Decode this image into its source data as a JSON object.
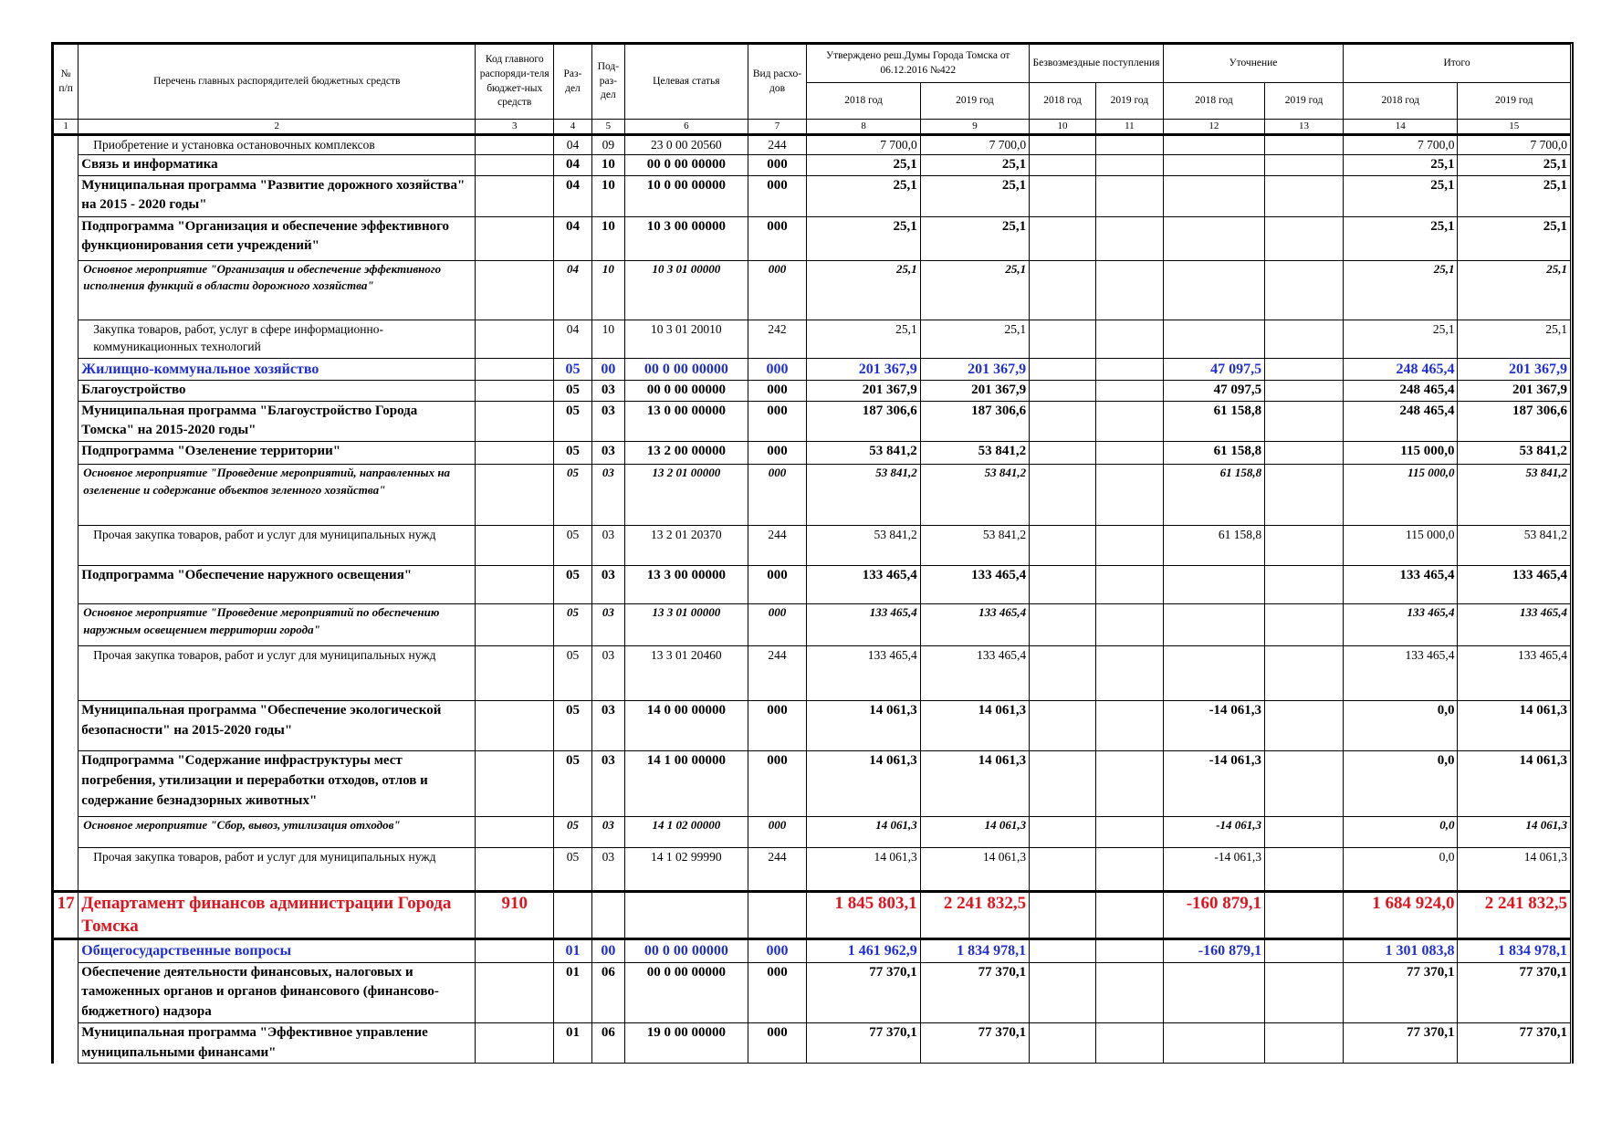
{
  "header": {
    "col1": "№ п/п",
    "col2": "Перечень главных распорядителей бюджетных средств",
    "col3": "Код главного распоряди-теля бюджет-ных средств",
    "col4": "Раз-дел",
    "col5": "Под-раз-дел",
    "col6": "Целевая статья",
    "col7": "Вид расхо-дов",
    "group_approved": "Утверждено реш.Думы Города Томска от 06.12.2016 №422",
    "group_gratis": "Безвозмездные поступления",
    "group_clarification": "Уточнение",
    "group_total": "Итого",
    "y2018": "2018 год",
    "y2019": "2019 год",
    "numbers": [
      "1",
      "2",
      "3",
      "4",
      "5",
      "6",
      "7",
      "8",
      "9",
      "10",
      "11",
      "12",
      "13",
      "14",
      "15"
    ]
  },
  "rows": [
    {
      "style": "pl",
      "name": "Приобретение и установка остановочных комплексов",
      "razdel": "04",
      "podrazdel": "09",
      "cs": "23 0 00 20560",
      "vr": "244",
      "a2018": "7 700,0",
      "a2019": "7 700,0",
      "u2018": "",
      "t2018": "7 700,0",
      "t2019": "7 700,0"
    },
    {
      "style": "b",
      "name": "Связь и информатика",
      "razdel": "04",
      "podrazdel": "10",
      "cs": "00 0 00 00000",
      "vr": "000",
      "a2018": "25,1",
      "a2019": "25,1",
      "u2018": "",
      "t2018": "25,1",
      "t2019": "25,1"
    },
    {
      "style": "b",
      "name": "Муниципальная программа \"Развитие дорожного хозяйства\" на 2015 - 2020 годы\"",
      "razdel": "04",
      "podrazdel": "10",
      "cs": "10 0 00 00000",
      "vr": "000",
      "a2018": "25,1",
      "a2019": "25,1",
      "u2018": "",
      "t2018": "25,1",
      "t2019": "25,1"
    },
    {
      "style": "b",
      "name": "Подпрограмма \"Организация и обеспечение эффективного функционирования сети учреждений\"",
      "razdel": "04",
      "podrazdel": "10",
      "cs": "10 3 00 00000",
      "vr": "000",
      "a2018": "25,1",
      "a2019": "25,1",
      "u2018": "",
      "t2018": "25,1",
      "t2019": "25,1"
    },
    {
      "style": "bi",
      "name": "Основное мероприятие \"Организация и обеспечение эффективного исполнения функций в области дорожного хозяйства\"",
      "razdel": "04",
      "podrazdel": "10",
      "cs": "10 3 01 00000",
      "vr": "000",
      "a2018": "25,1",
      "a2019": "25,1",
      "u2018": "",
      "t2018": "25,1",
      "t2019": "25,1"
    },
    {
      "style": "pl",
      "name": "Закупка товаров, работ, услуг в сфере информационно-коммуникационных технологий",
      "razdel": "04",
      "podrazdel": "10",
      "cs": "10 3 01 20010",
      "vr": "242",
      "a2018": "25,1",
      "a2019": "25,1",
      "u2018": "",
      "t2018": "25,1",
      "t2019": "25,1"
    },
    {
      "style": "blue",
      "name": "Жилищно-коммунальное хозяйство",
      "razdel": "05",
      "podrazdel": "00",
      "cs": "00 0 00 00000",
      "vr": "000",
      "a2018": "201 367,9",
      "a2019": "201 367,9",
      "u2018": "47 097,5",
      "t2018": "248 465,4",
      "t2019": "201 367,9"
    },
    {
      "style": "b",
      "name": "Благоустройство",
      "razdel": "05",
      "podrazdel": "03",
      "cs": "00 0 00 00000",
      "vr": "000",
      "a2018": "201 367,9",
      "a2019": "201 367,9",
      "u2018": "47 097,5",
      "t2018": "248 465,4",
      "t2019": "201 367,9"
    },
    {
      "style": "b",
      "name": "Муниципальная программа \"Благоустройство Города Томска\" на 2015-2020 годы\"",
      "razdel": "05",
      "podrazdel": "03",
      "cs": "13 0 00 00000",
      "vr": "000",
      "a2018": "187 306,6",
      "a2019": "187 306,6",
      "u2018": "61 158,8",
      "t2018": "248 465,4",
      "t2019": "187 306,6"
    },
    {
      "style": "b",
      "name": "Подпрограмма \"Озеленение территории\"",
      "razdel": "05",
      "podrazdel": "03",
      "cs": "13 2 00 00000",
      "vr": "000",
      "a2018": "53 841,2",
      "a2019": "53 841,2",
      "u2018": "61 158,8",
      "t2018": "115 000,0",
      "t2019": "53 841,2"
    },
    {
      "style": "bi",
      "name": "Основное мероприятие \"Проведение мероприятий, направленных на озеленение и содержание объектов зеленного хозяйства\"",
      "razdel": "05",
      "podrazdel": "03",
      "cs": "13 2 01 00000",
      "vr": "000",
      "a2018": "53 841,2",
      "a2019": "53 841,2",
      "u2018": "61 158,8",
      "t2018": "115 000,0",
      "t2019": "53 841,2"
    },
    {
      "style": "pl",
      "name": "Прочая закупка товаров, работ и услуг для муниципальных нужд",
      "razdel": "05",
      "podrazdel": "03",
      "cs": "13 2 01 20370",
      "vr": "244",
      "a2018": "53 841,2",
      "a2019": "53 841,2",
      "u2018": "61 158,8",
      "t2018": "115 000,0",
      "t2019": "53 841,2"
    },
    {
      "style": "b",
      "name": "Подпрограмма \"Обеспечение наружного освещения\"",
      "razdel": "05",
      "podrazdel": "03",
      "cs": "13 3 00 00000",
      "vr": "000",
      "a2018": "133 465,4",
      "a2019": "133 465,4",
      "u2018": "",
      "t2018": "133 465,4",
      "t2019": "133 465,4"
    },
    {
      "style": "bi",
      "name": "Основное мероприятие \"Проведение мероприятий по обеспечению наружным освещением территории города\"",
      "razdel": "05",
      "podrazdel": "03",
      "cs": "13 3 01 00000",
      "vr": "000",
      "a2018": "133 465,4",
      "a2019": "133 465,4",
      "u2018": "",
      "t2018": "133 465,4",
      "t2019": "133 465,4"
    },
    {
      "style": "pl",
      "name": "Прочая закупка товаров, работ и услуг для муниципальных нужд",
      "razdel": "05",
      "podrazdel": "03",
      "cs": "13 3 01 20460",
      "vr": "244",
      "a2018": "133 465,4",
      "a2019": "133 465,4",
      "u2018": "",
      "t2018": "133 465,4",
      "t2019": "133 465,4"
    },
    {
      "style": "b",
      "name": "Муниципальная программа \"Обеспечение экологической безопасности\" на 2015-2020 годы\"",
      "razdel": "05",
      "podrazdel": "03",
      "cs": "14 0 00 00000",
      "vr": "000",
      "a2018": "14 061,3",
      "a2019": "14 061,3",
      "u2018": "-14 061,3",
      "t2018": "0,0",
      "t2019": "14 061,3"
    },
    {
      "style": "b",
      "name": "Подпрограмма \"Содержание инфраструктуры мест погребения, утилизации и переработки отходов, отлов и содержание безнадзорных животных\"",
      "razdel": "05",
      "podrazdel": "03",
      "cs": "14 1 00 00000",
      "vr": "000",
      "a2018": "14 061,3",
      "a2019": "14 061,3",
      "u2018": "-14 061,3",
      "t2018": "0,0",
      "t2019": "14 061,3"
    },
    {
      "style": "bi",
      "name": "Основное мероприятие \"Сбор, вывоз, утилизация отходов\"",
      "razdel": "05",
      "podrazdel": "03",
      "cs": "14 1 02 00000",
      "vr": "000",
      "a2018": "14 061,3",
      "a2019": "14 061,3",
      "u2018": "-14 061,3",
      "t2018": "0,0",
      "t2019": "14 061,3"
    },
    {
      "style": "pl",
      "name": "Прочая закупка товаров, работ и услуг для муниципальных нужд",
      "razdel": "05",
      "podrazdel": "03",
      "cs": "14 1 02 99990",
      "vr": "244",
      "a2018": "14 061,3",
      "a2019": "14 061,3",
      "u2018": "-14 061,3",
      "t2018": "0,0",
      "t2019": "14 061,3"
    },
    {
      "style": "red",
      "num": "17",
      "name": "Департамент финансов администрации Города Томска",
      "code": "910",
      "razdel": "",
      "podrazdel": "",
      "cs": "",
      "vr": "",
      "a2018": "1 845 803,1",
      "a2019": "2 241 832,5",
      "u2018": "-160 879,1",
      "t2018": "1 684 924,0",
      "t2019": "2 241 832,5"
    },
    {
      "style": "blue",
      "name": "Общегосударственные вопросы",
      "razdel": "01",
      "podrazdel": "00",
      "cs": "00 0 00 00000",
      "vr": "000",
      "a2018": "1 461 962,9",
      "a2019": "1 834 978,1",
      "u2018": "-160 879,1",
      "t2018": "1 301 083,8",
      "t2019": "1 834 978,1"
    },
    {
      "style": "b",
      "name": "Обеспечение деятельности финансовых, налоговых и таможенных органов и органов финансового (финансово-бюджетного) надзора",
      "razdel": "01",
      "podrazdel": "06",
      "cs": "00 0 00 00000",
      "vr": "000",
      "a2018": "77 370,1",
      "a2019": "77 370,1",
      "u2018": "",
      "t2018": "77 370,1",
      "t2019": "77 370,1"
    },
    {
      "style": "b",
      "name": "Муниципальная программа \"Эффективное управление муниципальными финансами\"",
      "razdel": "01",
      "podrazdel": "06",
      "cs": "19 0 00 00000",
      "vr": "000",
      "a2018": "77 370,1",
      "a2019": "77 370,1",
      "u2018": "",
      "t2018": "77 370,1",
      "t2019": "77 370,1"
    }
  ]
}
